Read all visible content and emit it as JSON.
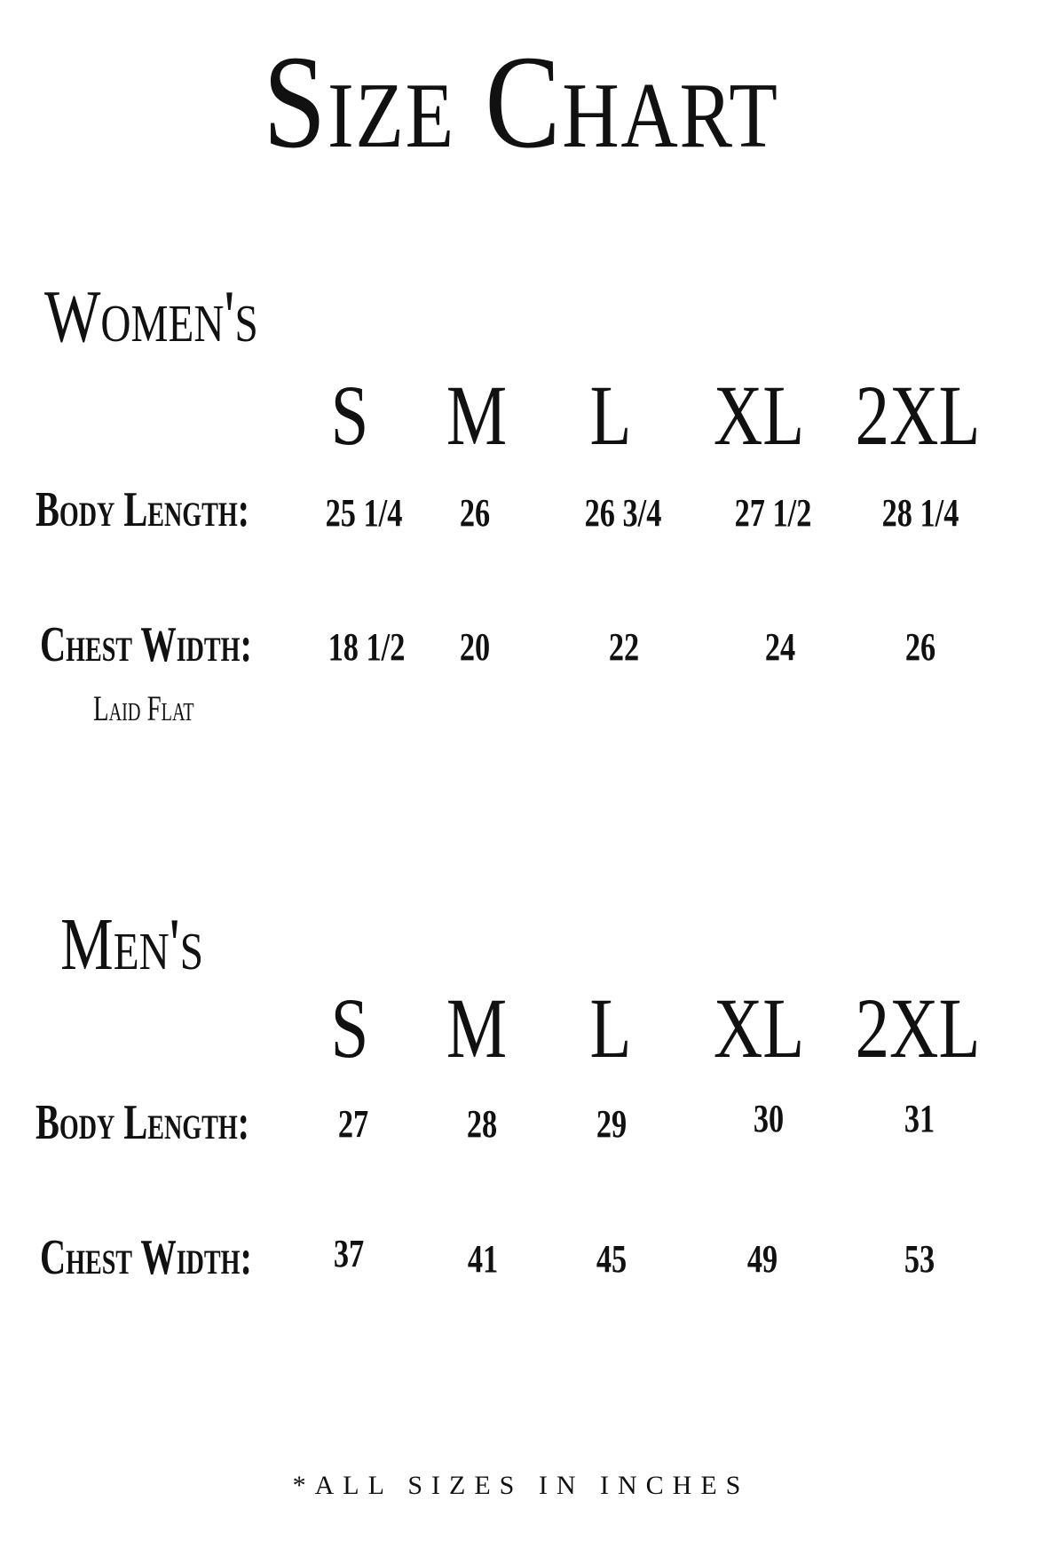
{
  "title": "Size Chart",
  "sizes": [
    "S",
    "M",
    "L",
    "XL",
    "2XL"
  ],
  "womens": {
    "heading": "Women's",
    "body_length_label": "Body Length:",
    "chest_width_label": "Chest Width:",
    "chest_width_note": "Laid Flat",
    "body_length": [
      "25 1/4",
      "26",
      "26 3/4",
      "27 1/2",
      "28 1/4"
    ],
    "chest_width": [
      "18 1/2",
      "20",
      "22",
      "24",
      "26"
    ]
  },
  "mens": {
    "heading": "Men's",
    "body_length_label": "Body Length:",
    "chest_width_label": "Chest Width:",
    "body_length": [
      "27",
      "28",
      "29",
      "30",
      "31"
    ],
    "chest_width": [
      "37",
      "41",
      "45",
      "49",
      "53"
    ]
  },
  "footer": "*All sizes in inches"
}
